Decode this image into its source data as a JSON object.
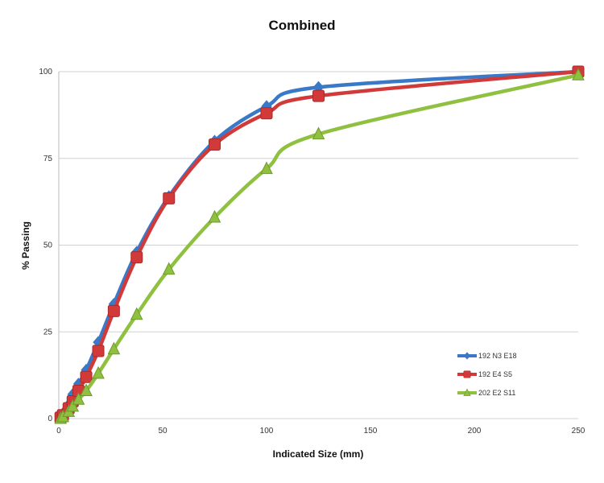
{
  "chart_data": {
    "type": "line",
    "title": "Combined",
    "xlabel": "Indicated Size (mm)",
    "ylabel": "% Passing",
    "xlim": [
      0,
      250
    ],
    "ylim": [
      0,
      100
    ],
    "xticks": [
      0,
      50,
      100,
      150,
      200,
      250
    ],
    "yticks": [
      0,
      25,
      50,
      75,
      100
    ],
    "grid": "horizontal",
    "legend_position": "bottom-right",
    "x": [
      0.85,
      2,
      4.75,
      6.7,
      9.5,
      13.2,
      19,
      26.5,
      37.5,
      53,
      75,
      100,
      125,
      250
    ],
    "series": [
      {
        "name": "192 N3 E18",
        "color": "#3a78c8",
        "marker": "diamond",
        "values": [
          0.5,
          1.5,
          4,
          7,
          10,
          14,
          22,
          33,
          48,
          64,
          80,
          90,
          95.5,
          100
        ]
      },
      {
        "name": "192 E4 S5",
        "color": "#d23a3a",
        "marker": "square",
        "values": [
          0.3,
          1,
          3,
          5,
          8,
          12,
          19.5,
          31,
          46.5,
          63.5,
          79,
          88,
          93,
          100
        ]
      },
      {
        "name": "202 E2 S11",
        "color": "#8fc040",
        "marker": "triangle",
        "values": [
          0,
          0.5,
          2,
          3.5,
          5.5,
          8,
          13,
          20,
          30,
          43,
          58,
          72,
          82,
          99
        ]
      }
    ]
  }
}
